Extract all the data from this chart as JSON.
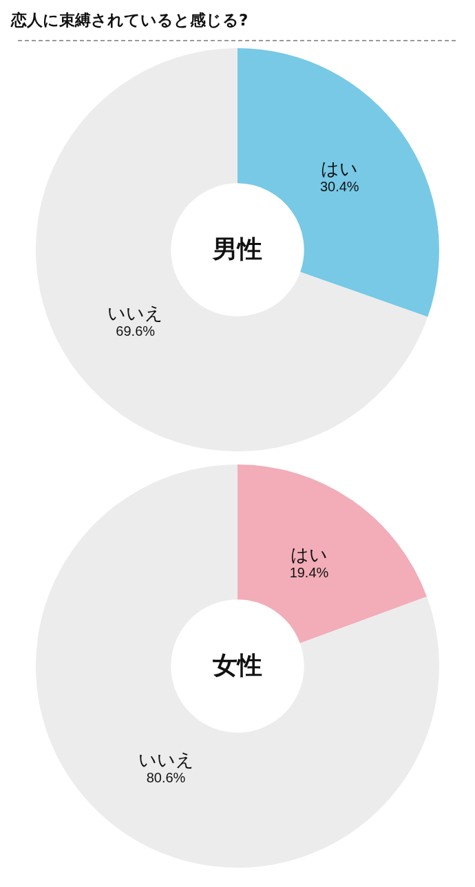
{
  "chart_data": [
    {
      "type": "donut",
      "title": "恋人に束縛されていると感じる?",
      "subtitle": "男性",
      "categories": [
        "はい",
        "いいえ"
      ],
      "values": [
        30.4,
        69.6
      ],
      "value_labels": [
        "30.4%",
        "69.6%"
      ],
      "colors": [
        "#77c9e6",
        "#ececec"
      ],
      "legend": false
    },
    {
      "type": "donut",
      "subtitle": "女性",
      "categories": [
        "はい",
        "いいえ"
      ],
      "values": [
        19.4,
        80.6
      ],
      "value_labels": [
        "19.4%",
        "80.6%"
      ],
      "colors": [
        "#f2adb8",
        "#ececec"
      ],
      "legend": false
    }
  ]
}
